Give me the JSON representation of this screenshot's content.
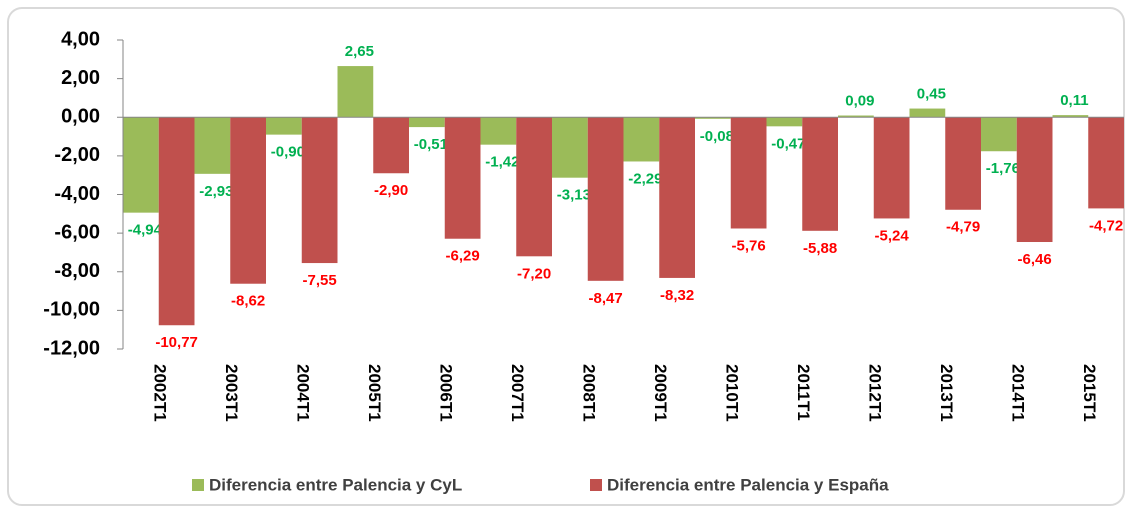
{
  "chart_data": {
    "type": "bar",
    "categories": [
      "2002T1",
      "2003T1",
      "2004T1",
      "2005T1",
      "2006T1",
      "2007T1",
      "2008T1",
      "2009T1",
      "2010T1",
      "2011T1",
      "2012T1",
      "2013T1",
      "2014T1",
      "2015T1"
    ],
    "series": [
      {
        "name": "Diferencia entre Palencia y CyL",
        "color": "#9bbb59",
        "label_color": "#00b050",
        "values": [
          -4.94,
          -2.93,
          -0.9,
          2.65,
          -0.51,
          -1.42,
          -3.13,
          -2.29,
          -0.08,
          -0.47,
          0.09,
          0.45,
          -1.76,
          0.11
        ],
        "value_labels": [
          "-4,94",
          "-2,93",
          "-0,90",
          "2,65",
          "-0,51",
          "-1,42",
          "-3,13",
          "-2,29",
          "-0,08",
          "-0,47",
          "0,09",
          "0,45",
          "-1,76",
          "0,11"
        ]
      },
      {
        "name": "Diferencia entre Palencia y España",
        "color": "#c0504d",
        "label_color": "#ff0000",
        "values": [
          -10.77,
          -8.62,
          -7.55,
          -2.9,
          -6.29,
          -7.2,
          -8.47,
          -8.32,
          -5.76,
          -5.88,
          -5.24,
          -4.79,
          -6.46,
          -4.72
        ],
        "value_labels": [
          "-10,77",
          "-8,62",
          "-7,55",
          "-2,90",
          "-6,29",
          "-7,20",
          "-8,47",
          "-8,32",
          "-5,76",
          "-5,88",
          "-5,24",
          "-4,79",
          "-6,46",
          "-4,72"
        ]
      }
    ],
    "ylim": [
      -12,
      4
    ],
    "yticks": [
      {
        "value": 4,
        "label": "4,00"
      },
      {
        "value": 2,
        "label": "2,00"
      },
      {
        "value": 0,
        "label": "0,00"
      },
      {
        "value": -2,
        "label": "-2,00"
      },
      {
        "value": -4,
        "label": "-4,00"
      },
      {
        "value": -6,
        "label": "-6,00"
      },
      {
        "value": -8,
        "label": "-8,00"
      },
      {
        "value": -10,
        "label": "-10,00"
      },
      {
        "value": -12,
        "label": "-12,00"
      }
    ],
    "legend": "bottom"
  }
}
